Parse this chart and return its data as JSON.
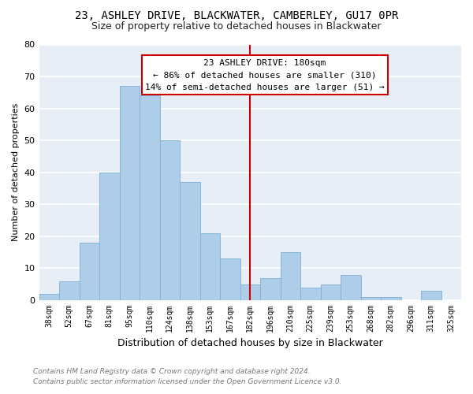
{
  "title_line1": "23, ASHLEY DRIVE, BLACKWATER, CAMBERLEY, GU17 0PR",
  "title_line2": "Size of property relative to detached houses in Blackwater",
  "xlabel": "Distribution of detached houses by size in Blackwater",
  "ylabel": "Number of detached properties",
  "bin_labels": [
    "38sqm",
    "52sqm",
    "67sqm",
    "81sqm",
    "95sqm",
    "110sqm",
    "124sqm",
    "138sqm",
    "153sqm",
    "167sqm",
    "182sqm",
    "196sqm",
    "210sqm",
    "225sqm",
    "239sqm",
    "253sqm",
    "268sqm",
    "282sqm",
    "296sqm",
    "311sqm",
    "325sqm"
  ],
  "bar_heights": [
    2,
    6,
    18,
    40,
    67,
    64,
    50,
    37,
    21,
    13,
    5,
    7,
    15,
    4,
    5,
    8,
    1,
    1,
    0,
    3,
    0
  ],
  "bar_color": "#aecde8",
  "bar_edge_color": "#7ab0d4",
  "vline_x_index": 10,
  "vline_color": "#cc0000",
  "ylim": [
    0,
    80
  ],
  "yticks": [
    0,
    10,
    20,
    30,
    40,
    50,
    60,
    70,
    80
  ],
  "annotation_title": "23 ASHLEY DRIVE: 180sqm",
  "annotation_line1": "← 86% of detached houses are smaller (310)",
  "annotation_line2": "14% of semi-detached houses are larger (51) →",
  "annotation_box_facecolor": "#ffffff",
  "annotation_box_edgecolor": "#cc0000",
  "footer_line1": "Contains HM Land Registry data © Crown copyright and database right 2024.",
  "footer_line2": "Contains public sector information licensed under the Open Government Licence v3.0.",
  "plot_bg_color": "#e8eef5",
  "fig_bg_color": "#ffffff",
  "grid_color": "#ffffff",
  "title1_fontsize": 10,
  "title2_fontsize": 9,
  "ylabel_fontsize": 8,
  "xlabel_fontsize": 9,
  "tick_fontsize": 7,
  "annotation_fontsize": 8,
  "footer_fontsize": 6.5
}
